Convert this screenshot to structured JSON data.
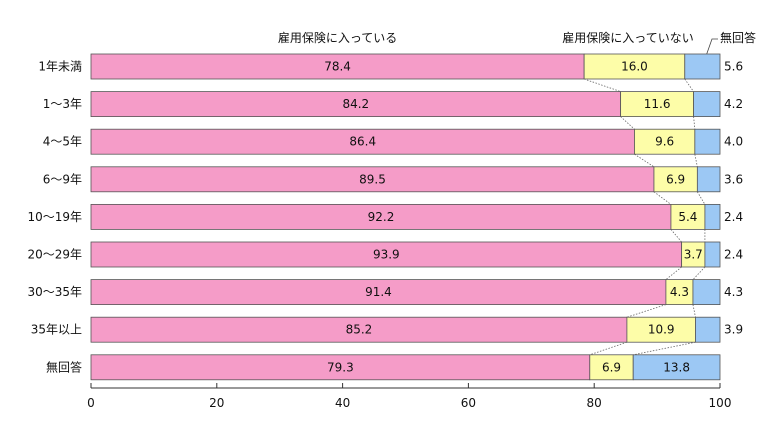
{
  "chart_data": {
    "type": "bar",
    "orientation": "horizontal",
    "stacked": true,
    "categories": [
      "1年未満",
      "1〜3年",
      "4〜5年",
      "6〜9年",
      "10〜19年",
      "20〜29年",
      "30〜35年",
      "35年以上",
      "無回答"
    ],
    "series": [
      {
        "name": "雇用保険に入っている",
        "color": "#f59cc8",
        "values": [
          78.4,
          84.2,
          86.4,
          89.5,
          92.2,
          93.9,
          91.4,
          85.2,
          79.3
        ]
      },
      {
        "name": "雇用保険に入っていない",
        "color": "#fdfda8",
        "values": [
          16.0,
          11.6,
          9.6,
          6.9,
          5.4,
          3.7,
          4.3,
          10.9,
          6.9
        ]
      },
      {
        "name": "無回答",
        "color": "#9cc8f4",
        "values": [
          5.6,
          4.2,
          4.0,
          3.6,
          2.4,
          2.4,
          4.3,
          3.9,
          13.8
        ]
      }
    ],
    "xlim": [
      0,
      100
    ],
    "xticks": [
      0,
      20,
      40,
      60,
      80,
      100
    ],
    "grid": false,
    "legend": "top"
  }
}
